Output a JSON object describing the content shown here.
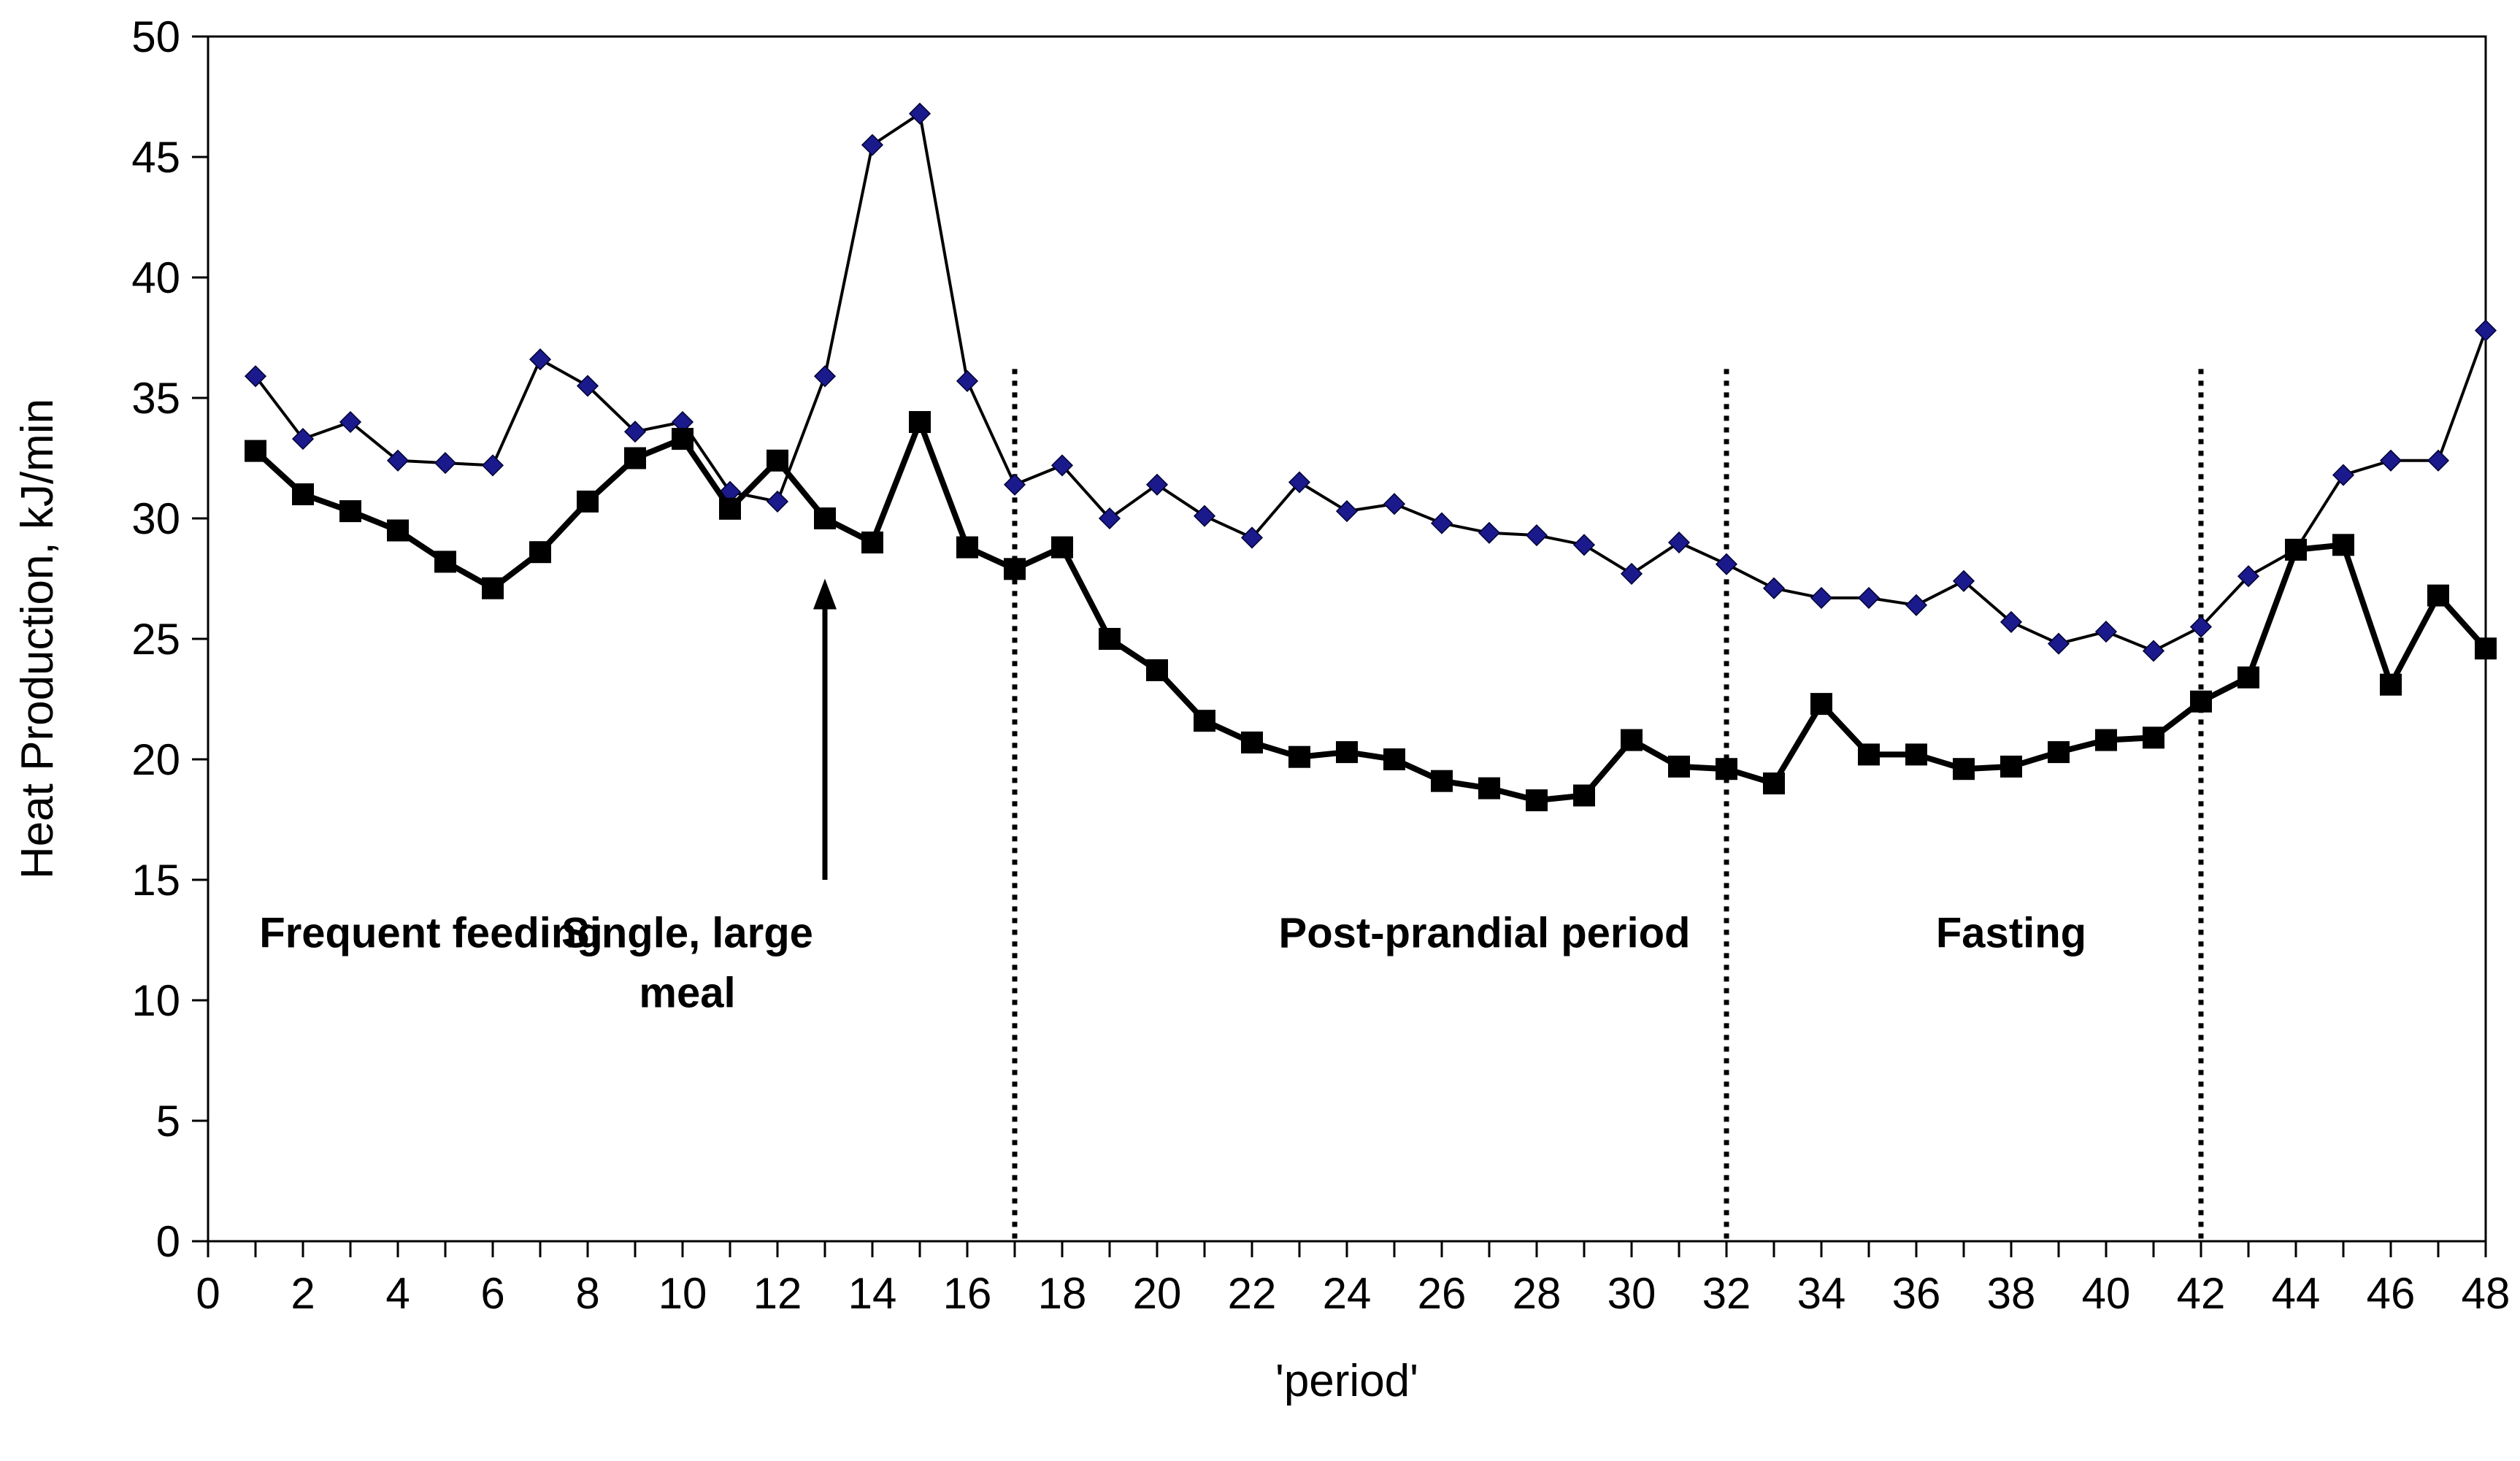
{
  "chart_data": {
    "type": "line",
    "title": "",
    "xlabel": "'period'",
    "ylabel": "Heat Production, kJ/min",
    "xlim": [
      0,
      48
    ],
    "ylim": [
      0,
      50
    ],
    "xticks": [
      0,
      2,
      4,
      6,
      8,
      10,
      12,
      14,
      16,
      18,
      20,
      22,
      24,
      26,
      28,
      30,
      32,
      34,
      36,
      38,
      40,
      42,
      44,
      46,
      48
    ],
    "yticks": [
      0,
      5,
      10,
      15,
      20,
      25,
      30,
      35,
      40,
      45,
      50
    ],
    "grid": false,
    "legend": "none",
    "x": [
      1,
      2,
      3,
      4,
      5,
      6,
      7,
      8,
      9,
      10,
      11,
      12,
      13,
      14,
      15,
      16,
      17,
      18,
      19,
      20,
      21,
      22,
      23,
      24,
      25,
      26,
      27,
      28,
      29,
      30,
      31,
      32,
      33,
      34,
      35,
      36,
      37,
      38,
      39,
      40,
      41,
      42,
      43,
      44,
      45,
      46,
      47,
      48
    ],
    "series": [
      {
        "name": "diamond-series",
        "marker": "diamond",
        "color": "#1a1a8c",
        "line_color": "#000000",
        "values": [
          35.9,
          33.3,
          34.0,
          32.4,
          32.3,
          32.2,
          36.6,
          35.5,
          33.6,
          34.0,
          31.1,
          30.7,
          35.9,
          45.5,
          46.8,
          35.7,
          31.4,
          32.2,
          30.0,
          31.4,
          30.1,
          29.2,
          31.5,
          30.3,
          30.6,
          29.8,
          29.4,
          29.3,
          28.9,
          27.7,
          29.0,
          28.1,
          27.1,
          26.7,
          26.7,
          26.4,
          27.4,
          25.7,
          24.8,
          25.3,
          24.5,
          25.5,
          27.6,
          28.7,
          31.8,
          32.4,
          32.4,
          37.8
        ]
      },
      {
        "name": "square-series",
        "marker": "square",
        "color": "#000000",
        "line_color": "#000000",
        "values": [
          32.8,
          31.0,
          30.3,
          29.5,
          28.2,
          27.1,
          28.6,
          30.7,
          32.5,
          33.3,
          30.4,
          32.4,
          30.0,
          29.0,
          34.0,
          28.8,
          27.9,
          28.8,
          25.0,
          23.7,
          21.6,
          20.7,
          20.1,
          20.3,
          20.0,
          19.1,
          18.8,
          18.3,
          18.5,
          20.8,
          19.7,
          19.6,
          19.0,
          22.3,
          20.2,
          20.2,
          19.6,
          19.7,
          20.3,
          20.8,
          20.9,
          22.4,
          23.4,
          28.7,
          28.9,
          23.1,
          26.8,
          24.6
        ]
      }
    ],
    "dividers": [
      17,
      32,
      42
    ],
    "arrow": {
      "x": 13,
      "y_from": 15,
      "y_to": 27.5
    },
    "annotations": [
      {
        "id": "frequent-feeding",
        "lines": [
          "Frequent feeding"
        ],
        "x": 4.7,
        "y": 12.2
      },
      {
        "id": "single-large-meal",
        "lines": [
          "Single, large",
          "meal"
        ],
        "x": 10.1,
        "y": 12.2
      },
      {
        "id": "post-prandial-period",
        "lines": [
          "Post-prandial period"
        ],
        "x": 26.9,
        "y": 12.2
      },
      {
        "id": "fasting",
        "lines": [
          "Fasting"
        ],
        "x": 38.0,
        "y": 12.2
      }
    ]
  }
}
